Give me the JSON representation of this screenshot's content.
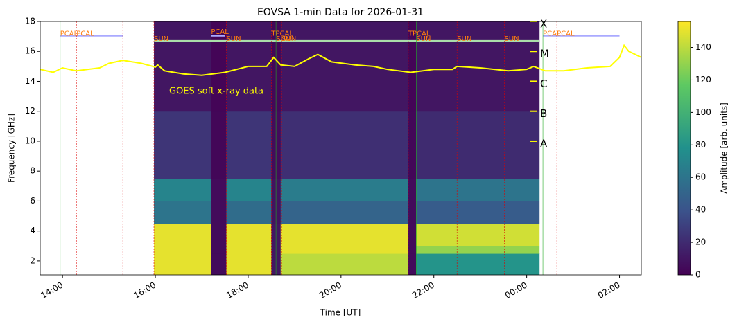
{
  "chart_data": {
    "type": "heatmap",
    "title": "EOVSA 1-min Data for 2026-01-31",
    "xlabel": "Time [UT]",
    "ylabel": "Frequency [GHz]",
    "colorbar_label": "Amplitude [arb. units]",
    "xlim": [
      13.52,
      26.47
    ],
    "ylim": [
      1.07,
      18
    ],
    "zlim": [
      0,
      156
    ],
    "xticks": [
      {
        "value": 14,
        "label": "14:00"
      },
      {
        "value": 16,
        "label": "16:00"
      },
      {
        "value": 18,
        "label": "18:00"
      },
      {
        "value": 20,
        "label": "20:00"
      },
      {
        "value": 22,
        "label": "22:00"
      },
      {
        "value": 24,
        "label": "00:00"
      },
      {
        "value": 26,
        "label": "02:00"
      }
    ],
    "yticks": [
      2,
      4,
      6,
      8,
      10,
      12,
      14,
      16,
      18
    ],
    "cticks": [
      0,
      20,
      40,
      60,
      80,
      100,
      120,
      140
    ],
    "colormap": [
      "#440154",
      "#3b528b",
      "#21918c",
      "#5ec962",
      "#fde725"
    ],
    "x_edges": [
      15.97,
      17.2,
      17.53,
      18.5,
      18.7,
      21.45,
      21.62,
      24.27
    ],
    "y_edges": [
      1.07,
      2.5,
      3,
      4.5,
      6,
      7.5,
      12,
      18
    ],
    "values": [
      [
        150,
        5,
        150,
        10,
        140,
        5,
        80
      ],
      [
        150,
        5,
        150,
        10,
        150,
        5,
        130
      ],
      [
        150,
        5,
        150,
        10,
        150,
        5,
        145
      ],
      [
        60,
        5,
        55,
        8,
        50,
        5,
        45
      ],
      [
        70,
        5,
        70,
        8,
        65,
        5,
        60
      ],
      [
        25,
        3,
        25,
        5,
        22,
        3,
        20
      ],
      [
        10,
        2,
        10,
        3,
        10,
        2,
        10
      ]
    ],
    "scan_bars": [
      {
        "x": [
          13.95,
          15.3
        ],
        "y": 17.05,
        "color": "#aaaaff"
      },
      {
        "x": [
          17.2,
          17.5
        ],
        "y": 17.05,
        "color": "#aaaaff"
      },
      {
        "x": [
          24.35,
          26.0
        ],
        "y": 17.05,
        "color": "#aaaaff"
      },
      {
        "x": [
          15.97,
          24.27
        ],
        "y": 16.7,
        "color": "#aaddaa"
      }
    ],
    "annotations": [
      {
        "label": "PCAL",
        "x": 13.95,
        "y": 17.2
      },
      {
        "label": "PCAL",
        "x": 14.3,
        "y": 17.2
      },
      {
        "label": "SUN",
        "x": 15.97,
        "y": 16.85
      },
      {
        "label": "PCAL",
        "x": 17.2,
        "y": 17.3
      },
      {
        "label": "SUN",
        "x": 17.53,
        "y": 16.85
      },
      {
        "label": "TPCAL",
        "x": 18.5,
        "y": 17.2
      },
      {
        "label": "SUN",
        "x": 18.6,
        "y": 16.85
      },
      {
        "label": "SUN",
        "x": 18.72,
        "y": 16.85
      },
      {
        "label": "TPCAL",
        "x": 21.45,
        "y": 17.2
      },
      {
        "label": "SUN",
        "x": 21.62,
        "y": 16.85
      },
      {
        "label": "SUN",
        "x": 22.5,
        "y": 16.85
      },
      {
        "label": "SUN",
        "x": 23.52,
        "y": 16.85
      },
      {
        "label": "PCAL",
        "x": 24.35,
        "y": 17.2
      },
      {
        "label": "PCAL",
        "x": 24.65,
        "y": 17.2
      }
    ],
    "event_lines": [
      15.3,
      25.3
    ],
    "goes": {
      "label": "GOES soft x-ray data",
      "color": "#ffff00",
      "x": [
        13.52,
        13.8,
        14.0,
        14.3,
        14.8,
        15.0,
        15.3,
        15.7,
        16.0,
        16.05,
        16.2,
        16.6,
        17.0,
        17.5,
        18.0,
        18.4,
        18.55,
        18.7,
        19.0,
        19.3,
        19.5,
        19.8,
        20.3,
        20.7,
        21.0,
        21.5,
        22.0,
        22.4,
        22.5,
        23.0,
        23.6,
        24.0,
        24.15,
        24.4,
        24.8,
        25.3,
        25.8,
        26.0,
        26.1,
        26.2,
        26.47
      ],
      "values": [
        14.8,
        14.6,
        14.9,
        14.7,
        14.9,
        15.2,
        15.4,
        15.2,
        14.95,
        15.1,
        14.7,
        14.5,
        14.4,
        14.6,
        15.0,
        15.0,
        15.6,
        15.1,
        15.0,
        15.5,
        15.8,
        15.3,
        15.1,
        15.0,
        14.8,
        14.6,
        14.8,
        14.8,
        15.0,
        14.9,
        14.7,
        14.8,
        15.0,
        14.7,
        14.7,
        14.9,
        15.0,
        15.6,
        16.4,
        16.0,
        15.6
      ],
      "levels": [
        {
          "label": "X",
          "y": 18
        },
        {
          "label": "M",
          "y": 16
        },
        {
          "label": "C",
          "y": 14
        },
        {
          "label": "B",
          "y": 12
        },
        {
          "label": "A",
          "y": 10
        }
      ]
    }
  }
}
